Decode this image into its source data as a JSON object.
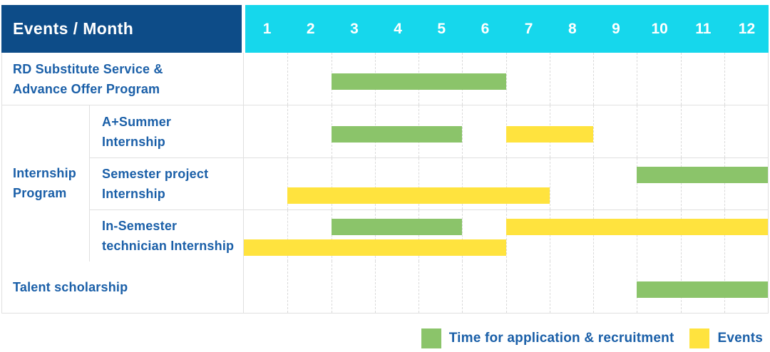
{
  "header": {
    "title": "Events / Month",
    "months": [
      "1",
      "2",
      "3",
      "4",
      "5",
      "6",
      "7",
      "8",
      "9",
      "10",
      "11",
      "12"
    ]
  },
  "group": {
    "label": "Internship\nProgram"
  },
  "rows": [
    {
      "label": "RD Substitute Service &\nAdvance Offer Program",
      "bars": [
        {
          "color": "green",
          "start": 3,
          "end": 6,
          "lane": "mid"
        }
      ]
    },
    {
      "label": "A+Summer\nInternship",
      "bars": [
        {
          "color": "green",
          "start": 3,
          "end": 5,
          "lane": "mid"
        },
        {
          "color": "yellow",
          "start": 7,
          "end": 8,
          "lane": "mid"
        }
      ]
    },
    {
      "label": "Semester project\nInternship",
      "bars": [
        {
          "color": "green",
          "start": 10,
          "end": 12,
          "lane": "top"
        },
        {
          "color": "yellow",
          "start": 2,
          "end": 7,
          "lane": "bottom"
        }
      ]
    },
    {
      "label": "In-Semester\ntechnician Internship",
      "bars": [
        {
          "color": "green",
          "start": 3,
          "end": 5,
          "lane": "top"
        },
        {
          "color": "yellow",
          "start": 7,
          "end": 12,
          "lane": "top"
        },
        {
          "color": "yellow",
          "start": 1,
          "end": 6,
          "lane": "bottom"
        }
      ]
    },
    {
      "label": "Talent scholarship",
      "bars": [
        {
          "color": "green",
          "start": 10,
          "end": 12,
          "lane": "mid"
        }
      ]
    }
  ],
  "legend": {
    "items": [
      {
        "color_key": "green",
        "label": "Time for application & recruitment"
      },
      {
        "color_key": "yellow",
        "label": "Events"
      }
    ]
  },
  "colors": {
    "green": "#8bc46a",
    "yellow": "#ffe33e",
    "header_navy": "#0d4c88",
    "header_cyan": "#16d7ec",
    "text_blue": "#1a5fa8",
    "grid_line": "#e0e0e0"
  },
  "chart_data": {
    "type": "gantt",
    "title": "Events / Month",
    "x_categories": [
      1,
      2,
      3,
      4,
      5,
      6,
      7,
      8,
      9,
      10,
      11,
      12
    ],
    "legend": [
      {
        "name": "Time for application & recruitment",
        "color": "#8bc46a"
      },
      {
        "name": "Events",
        "color": "#ffe33e"
      }
    ],
    "tasks": [
      {
        "event": "RD Substitute Service & Advance Offer Program",
        "group": null,
        "spans": [
          {
            "series": "Time for application & recruitment",
            "from_month": 3,
            "to_month": 6
          }
        ]
      },
      {
        "event": "A+Summer Internship",
        "group": "Internship Program",
        "spans": [
          {
            "series": "Time for application & recruitment",
            "from_month": 3,
            "to_month": 5
          },
          {
            "series": "Events",
            "from_month": 7,
            "to_month": 8
          }
        ]
      },
      {
        "event": "Semester project Internship",
        "group": "Internship Program",
        "spans": [
          {
            "series": "Time for application & recruitment",
            "from_month": 10,
            "to_month": 12
          },
          {
            "series": "Events",
            "from_month": 2,
            "to_month": 7
          }
        ]
      },
      {
        "event": "In-Semester technician Internship",
        "group": "Internship Program",
        "spans": [
          {
            "series": "Time for application & recruitment",
            "from_month": 3,
            "to_month": 5
          },
          {
            "series": "Events",
            "from_month": 7,
            "to_month": 12
          },
          {
            "series": "Events",
            "from_month": 1,
            "to_month": 6
          }
        ]
      },
      {
        "event": "Talent scholarship",
        "group": null,
        "spans": [
          {
            "series": "Time for application & recruitment",
            "from_month": 10,
            "to_month": 12
          }
        ]
      }
    ],
    "layout": {
      "grid": "dashed-vertical-month-lines",
      "legend_position": "bottom-right"
    }
  }
}
